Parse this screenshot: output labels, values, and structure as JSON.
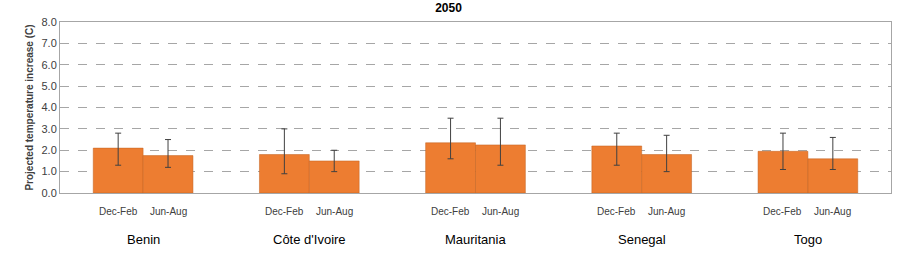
{
  "chart_data": {
    "type": "bar",
    "title": "2050",
    "y_label": "Projected temperature increase (C)",
    "categories": [
      "Benin",
      "Côte d'Ivoire",
      "Mauritania",
      "Senegal",
      "Togo"
    ],
    "series": [
      {
        "name": "Dec-Feb",
        "color": "#ED7D31",
        "values": [
          2.1,
          1.8,
          2.35,
          2.2,
          1.95
        ],
        "error_low": [
          1.3,
          0.9,
          1.6,
          1.3,
          1.1
        ],
        "error_high": [
          2.8,
          3.0,
          3.5,
          2.8,
          2.8
        ]
      },
      {
        "name": "Jun-Aug",
        "color": "#ED7D31",
        "values": [
          1.75,
          1.5,
          2.25,
          1.8,
          1.6
        ],
        "error_low": [
          1.2,
          1.0,
          1.3,
          1.0,
          1.1
        ],
        "error_high": [
          2.5,
          2.0,
          3.5,
          2.7,
          2.6
        ]
      }
    ],
    "ylim": [
      0,
      8
    ],
    "yticks": [
      {
        "value": 0,
        "label": "0.0"
      },
      {
        "value": 1,
        "label": "1.0"
      },
      {
        "value": 2,
        "label": "2.0"
      },
      {
        "value": 3,
        "label": "3.0"
      },
      {
        "value": 4,
        "label": "4.0"
      },
      {
        "value": 5,
        "label": "5.0"
      },
      {
        "value": 6,
        "label": "6.0"
      },
      {
        "value": 7,
        "label": "7.0"
      },
      {
        "value": 8,
        "label": "8.0"
      }
    ],
    "grid": true
  }
}
